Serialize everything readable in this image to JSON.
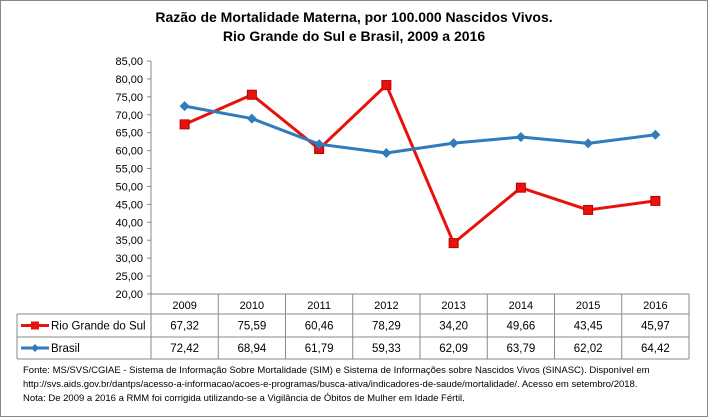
{
  "chart_data": {
    "type": "line",
    "title": "Razão de Mortalidade Materna, por 100.000 Nascidos Vivos.",
    "subtitle": "Rio Grande do Sul e Brasil, 2009 a 2016",
    "categories": [
      "2009",
      "2010",
      "2011",
      "2012",
      "2013",
      "2014",
      "2015",
      "2016"
    ],
    "series": [
      {
        "name": "Rio Grande do Sul",
        "color": "#e8120c",
        "marker": "square",
        "values": [
          67.32,
          75.59,
          60.46,
          78.29,
          34.2,
          49.66,
          43.45,
          45.97
        ],
        "labels": [
          "67,32",
          "75,59",
          "60,46",
          "78,29",
          "34,20",
          "49,66",
          "43,45",
          "45,97"
        ]
      },
      {
        "name": "Brasil",
        "color": "#2f7bbd",
        "marker": "diamond",
        "values": [
          72.42,
          68.94,
          61.79,
          59.33,
          62.09,
          63.79,
          62.02,
          64.42
        ],
        "labels": [
          "72,42",
          "68,94",
          "61,79",
          "59,33",
          "62,09",
          "63,79",
          "62,02",
          "64,42"
        ]
      }
    ],
    "ylim": [
      20,
      85
    ],
    "yticks": [
      "20,00",
      "25,00",
      "30,00",
      "35,00",
      "40,00",
      "45,00",
      "50,00",
      "55,00",
      "60,00",
      "65,00",
      "70,00",
      "75,00",
      "80,00",
      "85,00"
    ],
    "grid": false,
    "legend": "data table"
  },
  "notes": [
    "Fonte: MS/SVS/CGIAE - Sistema de Informação Sobre Mortalidade (SIM) e Sistema de Informações sobre Nascidos Vivos (SINASC). Disponível em",
    "http://svs.aids.gov.br/dantps/acesso-a-informacao/acoes-e-programas/busca-ativa/indicadores-de-saude/mortalidade/. Acesso em setembro/2018.",
    "Nota: De 2009 a 2016 a RMM foi corrigida utilizando-se a Vigilância de Óbitos de Mulher em Idade Fértil."
  ]
}
